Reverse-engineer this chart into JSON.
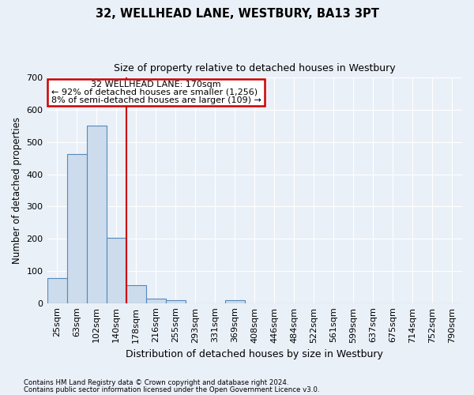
{
  "title1": "32, WELLHEAD LANE, WESTBURY, BA13 3PT",
  "title2": "Size of property relative to detached houses in Westbury",
  "xlabel": "Distribution of detached houses by size in Westbury",
  "ylabel": "Number of detached properties",
  "categories": [
    "25sqm",
    "63sqm",
    "102sqm",
    "140sqm",
    "178sqm",
    "216sqm",
    "255sqm",
    "293sqm",
    "331sqm",
    "369sqm",
    "408sqm",
    "446sqm",
    "484sqm",
    "522sqm",
    "561sqm",
    "599sqm",
    "637sqm",
    "675sqm",
    "714sqm",
    "752sqm",
    "790sqm"
  ],
  "values": [
    78,
    462,
    551,
    203,
    55,
    15,
    8,
    0,
    0,
    8,
    0,
    0,
    0,
    0,
    0,
    0,
    0,
    0,
    0,
    0,
    0
  ],
  "bar_color": "#ccdcec",
  "bar_edge_color": "#5588bb",
  "background_color": "#eaf0f8",
  "grid_color": "#ffffff",
  "annotation_text_line1": "32 WELLHEAD LANE: 170sqm",
  "annotation_text_line2": "← 92% of detached houses are smaller (1,256)",
  "annotation_text_line3": "8% of semi-detached houses are larger (109) →",
  "annotation_box_facecolor": "#ffffff",
  "annotation_border_color": "#cc0000",
  "red_line_color": "#cc0000",
  "ylim": [
    0,
    700
  ],
  "yticks": [
    0,
    100,
    200,
    300,
    400,
    500,
    600,
    700
  ],
  "footnote1": "Contains HM Land Registry data © Crown copyright and database right 2024.",
  "footnote2": "Contains public sector information licensed under the Open Government Licence v3.0."
}
